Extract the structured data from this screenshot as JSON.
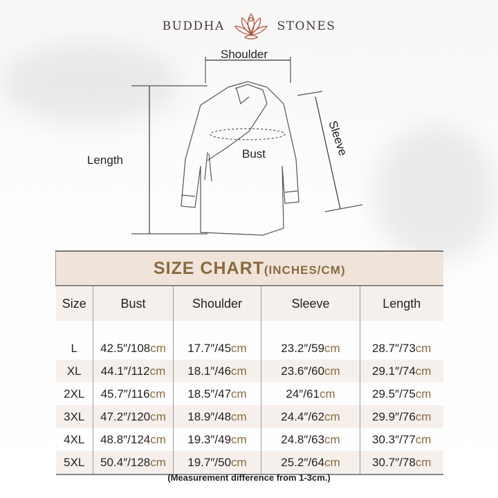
{
  "brand": {
    "left": "BUDDHA",
    "right": "STONES",
    "logo_icon": "lotus-meditation-icon",
    "color": "#b0583a"
  },
  "diagram": {
    "shoulder": "Shoulder",
    "sleeve": "Sleeve",
    "length": "Length",
    "bust": "Bust"
  },
  "size_chart": {
    "title": "SIZE CHART",
    "units": "(INCHES/CM)",
    "accent_color": "#8a6a3e",
    "headers": [
      "Size",
      "Bust",
      "Shoulder",
      "Sleeve",
      "Length"
    ],
    "rows": [
      {
        "size": "L",
        "cells": [
          [
            "42.5″/108",
            "cm"
          ],
          [
            "17.7″/45",
            "cm"
          ],
          [
            "23.2″/59",
            "cm"
          ],
          [
            "28.7″/73",
            "cm"
          ]
        ]
      },
      {
        "size": "XL",
        "cells": [
          [
            "44.1″/112",
            "cm"
          ],
          [
            "18.1″/46",
            "cm"
          ],
          [
            "23.6″/60",
            "cm"
          ],
          [
            "29.1″/74",
            "cm"
          ]
        ]
      },
      {
        "size": "2XL",
        "cells": [
          [
            "45.7″/116",
            "cm"
          ],
          [
            "18.5″/47",
            "cm"
          ],
          [
            "24″/61",
            "cm"
          ],
          [
            "29.5″/75",
            "cm"
          ]
        ]
      },
      {
        "size": "3XL",
        "cells": [
          [
            "47.2″/120",
            "cm"
          ],
          [
            "18.9″/48",
            "cm"
          ],
          [
            "24.4″/62",
            "cm"
          ],
          [
            "29.9″/76",
            "cm"
          ]
        ]
      },
      {
        "size": "4XL",
        "cells": [
          [
            "48.8″/124",
            "cm"
          ],
          [
            "19.3″/49",
            "cm"
          ],
          [
            "24.8″/63",
            "cm"
          ],
          [
            "30.3″/77",
            "cm"
          ]
        ]
      },
      {
        "size": "5XL",
        "cells": [
          [
            "50.4″/128",
            "cm"
          ],
          [
            "19.7″/50",
            "cm"
          ],
          [
            "25.2″/64",
            "cm"
          ],
          [
            "30.7″/78",
            "cm"
          ]
        ]
      }
    ],
    "note": "(Measurement difference from 1-3cm.)"
  }
}
